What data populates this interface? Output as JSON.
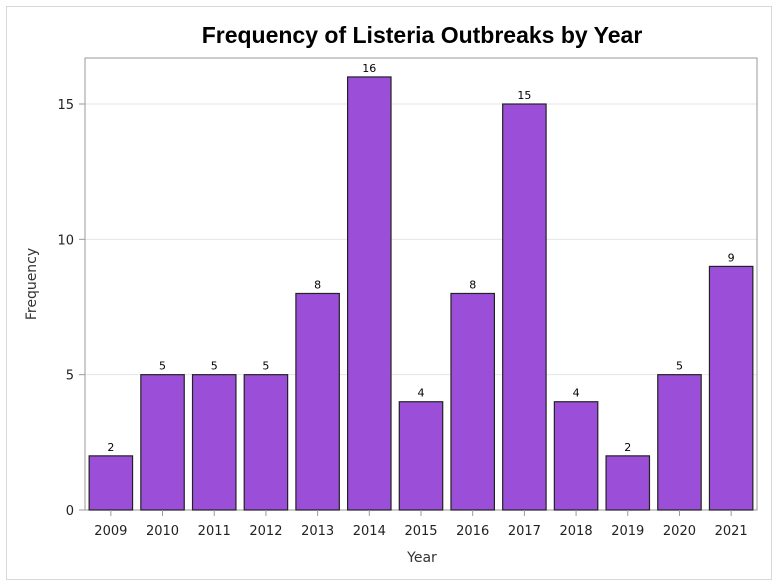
{
  "chart_data": {
    "type": "bar",
    "title": "Frequency of Listeria Outbreaks by Year",
    "xlabel": "Year",
    "ylabel": "Frequency",
    "categories": [
      "2009",
      "2010",
      "2011",
      "2012",
      "2013",
      "2014",
      "2015",
      "2016",
      "2017",
      "2018",
      "2019",
      "2020",
      "2021"
    ],
    "values": [
      2,
      5,
      5,
      5,
      8,
      16,
      4,
      8,
      15,
      4,
      2,
      5,
      9
    ],
    "data_labels": [
      "2",
      "5",
      "5",
      "5",
      "8",
      "16",
      "4",
      "8",
      "15",
      "4",
      "2",
      "5",
      "9"
    ],
    "ylim": [
      0,
      16.7
    ],
    "yticks": [
      0,
      5,
      10,
      15
    ],
    "ytick_labels": [
      "0",
      "5",
      "10",
      "15"
    ],
    "grid": true,
    "colors": {
      "bar_fill": "#9b4fd9",
      "bar_stroke": "#222222",
      "grid": "#e6e6e6",
      "axis": "#9a9a9a"
    }
  }
}
